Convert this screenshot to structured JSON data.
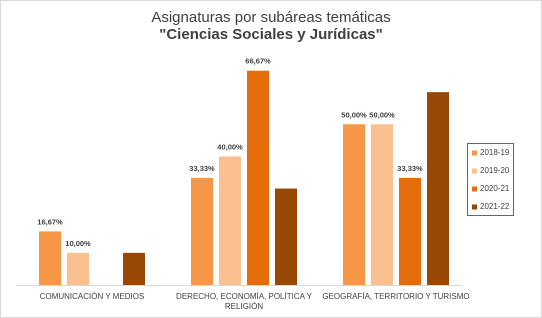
{
  "chart_data": {
    "type": "bar",
    "title": "Asignaturas por subáreas temáticas",
    "subtitle": "\"Ciencias Sociales y Jurídicas\"",
    "categories": [
      "COMUNICACIÓN Y MEDIOS",
      "DERECHO, ECONOMÍA, POLÍTICA Y RELIGIÓN",
      "GEOGRAFÍA, TERRITORIO Y TURISMO"
    ],
    "series": [
      {
        "name": "2018-19",
        "color": "#f79646",
        "values": [
          16.67,
          33.33,
          50
        ],
        "value_labels": [
          "16,67%",
          "33,33%",
          "50,00%"
        ]
      },
      {
        "name": "2019-20",
        "color": "#fac090",
        "values": [
          10,
          40,
          50
        ],
        "value_labels": [
          "10,00%",
          "40,00%",
          "50,00%"
        ]
      },
      {
        "name": "2020-21",
        "color": "#e46c0a",
        "values": [
          null,
          66.67,
          33.33
        ],
        "value_labels": [
          null,
          "66,67%",
          "33,33%"
        ]
      },
      {
        "name": "2021-22",
        "color": "#974706",
        "values": [
          10,
          30,
          60
        ]
      }
    ],
    "ylim": [
      0,
      70
    ],
    "legend": "right"
  }
}
